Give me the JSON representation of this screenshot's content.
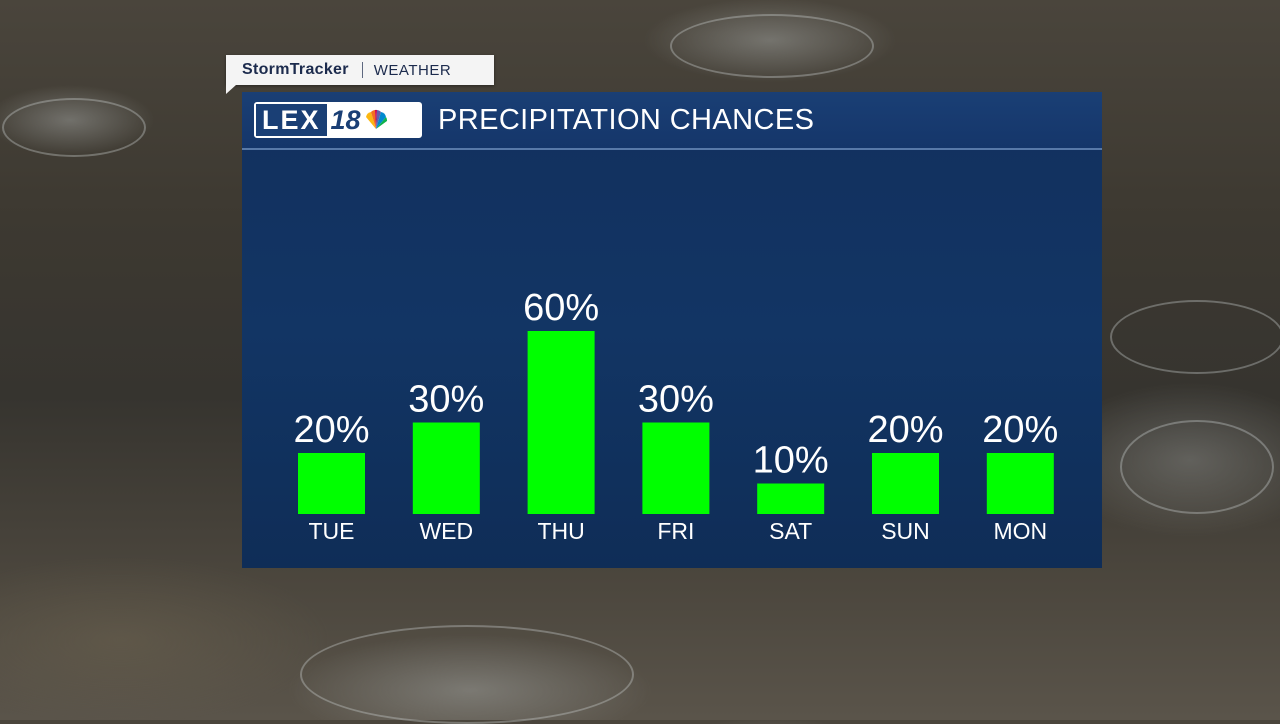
{
  "brand": {
    "name": "StormTracker",
    "section": "WEATHER"
  },
  "logo": {
    "text": "LEX",
    "number": "18"
  },
  "panel": {
    "title": "PRECIPITATION CHANCES"
  },
  "colors": {
    "bar": "#00ff00",
    "panel": "#12305e",
    "header": "#1a3f75"
  },
  "chart_data": {
    "type": "bar",
    "categories": [
      "TUE",
      "WED",
      "THU",
      "FRI",
      "SAT",
      "SUN",
      "MON"
    ],
    "values": [
      20,
      30,
      60,
      30,
      10,
      20,
      20
    ],
    "data_labels": [
      "20%",
      "30%",
      "60%",
      "30%",
      "10%",
      "20%",
      "20%"
    ],
    "title": "PRECIPITATION CHANCES",
    "xlabel": "",
    "ylabel": "",
    "ylim": [
      0,
      60
    ],
    "grid": false,
    "legend": "none"
  }
}
